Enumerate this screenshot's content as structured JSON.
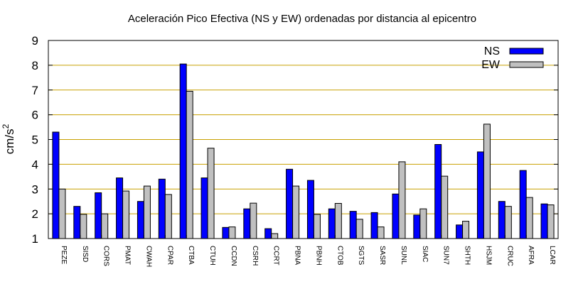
{
  "chart_data": {
    "type": "bar",
    "title": "Aceleración Pico Efectiva (NS y EW) ordenadas por distancia al epicentro",
    "ylabel_base": "cm/s",
    "ylabel_exp": "2",
    "ylim": [
      1,
      9
    ],
    "yticks": [
      "1",
      "2",
      "3",
      "4",
      "5",
      "6",
      "7",
      "8",
      "9"
    ],
    "grid": true,
    "grid_color": "#c8a000",
    "legend_position": "top-right",
    "categories": [
      "PEZE",
      "SISD",
      "CORS",
      "PMAT",
      "CWAH",
      "CPAR",
      "CTBA",
      "CTUH",
      "CCDN",
      "CSRH",
      "CCRT",
      "PBNA",
      "PBNH",
      "CTOB",
      "SGTS",
      "SASR",
      "SUNL",
      "SIAC",
      "SUN7",
      "SHTH",
      "HSJM",
      "CRUC",
      "AFRA",
      "LCAR"
    ],
    "series": [
      {
        "name": "NS",
        "color": "#0000ff",
        "values": [
          5.3,
          2.3,
          2.85,
          3.45,
          2.5,
          3.4,
          8.05,
          3.45,
          1.45,
          2.2,
          1.4,
          3.8,
          3.35,
          2.2,
          2.1,
          2.05,
          2.8,
          1.95,
          4.8,
          1.55,
          4.5,
          2.5,
          3.75,
          2.4
        ]
      },
      {
        "name": "EW",
        "color": "#c0c0c0",
        "values": [
          3.0,
          1.98,
          2.0,
          2.92,
          3.12,
          2.78,
          6.95,
          4.65,
          1.47,
          2.43,
          1.2,
          3.12,
          1.98,
          2.42,
          1.78,
          1.47,
          4.1,
          2.2,
          3.52,
          1.7,
          5.62,
          2.3,
          2.66,
          2.36
        ]
      }
    ]
  }
}
